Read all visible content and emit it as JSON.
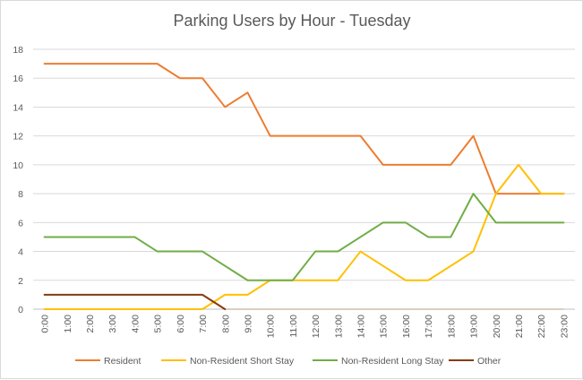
{
  "chart_data": {
    "type": "line",
    "title": "Parking Users by Hour - Tuesday",
    "xlabel": "",
    "ylabel": "",
    "ylim": [
      0,
      18
    ],
    "yticks": [
      0,
      2,
      4,
      6,
      8,
      10,
      12,
      14,
      16,
      18
    ],
    "grid": true,
    "legend_position": "bottom",
    "categories": [
      "0:00",
      "1:00",
      "2:00",
      "3:00",
      "4:00",
      "5:00",
      "6:00",
      "7:00",
      "8:00",
      "9:00",
      "10:00",
      "11:00",
      "12:00",
      "13:00",
      "14:00",
      "15:00",
      "16:00",
      "17:00",
      "18:00",
      "19:00",
      "20:00",
      "21:00",
      "22:00",
      "23:00"
    ],
    "series": [
      {
        "name": "Resident",
        "color": "#ED7D31",
        "values": [
          17,
          17,
          17,
          17,
          17,
          17,
          16,
          16,
          14,
          15,
          12,
          12,
          12,
          12,
          12,
          10,
          10,
          10,
          10,
          12,
          8,
          8,
          8,
          8
        ]
      },
      {
        "name": "Non-Resident Short Stay",
        "color": "#FFC000",
        "values": [
          0,
          0,
          0,
          0,
          0,
          0,
          0,
          0,
          1,
          1,
          2,
          2,
          2,
          2,
          4,
          3,
          2,
          2,
          3,
          4,
          8,
          10,
          8,
          8
        ]
      },
      {
        "name": "Non-Resident Long Stay",
        "color": "#70AD47",
        "values": [
          5,
          5,
          5,
          5,
          5,
          4,
          4,
          4,
          3,
          2,
          2,
          2,
          4,
          4,
          5,
          6,
          6,
          5,
          5,
          8,
          6,
          6,
          6,
          6
        ]
      },
      {
        "name": "Other",
        "color": "#843C0C",
        "values": [
          1,
          1,
          1,
          1,
          1,
          1,
          1,
          1,
          0,
          0,
          0,
          0,
          0,
          0,
          0,
          0,
          0,
          0,
          0,
          0,
          0,
          0,
          0,
          0
        ]
      }
    ]
  }
}
